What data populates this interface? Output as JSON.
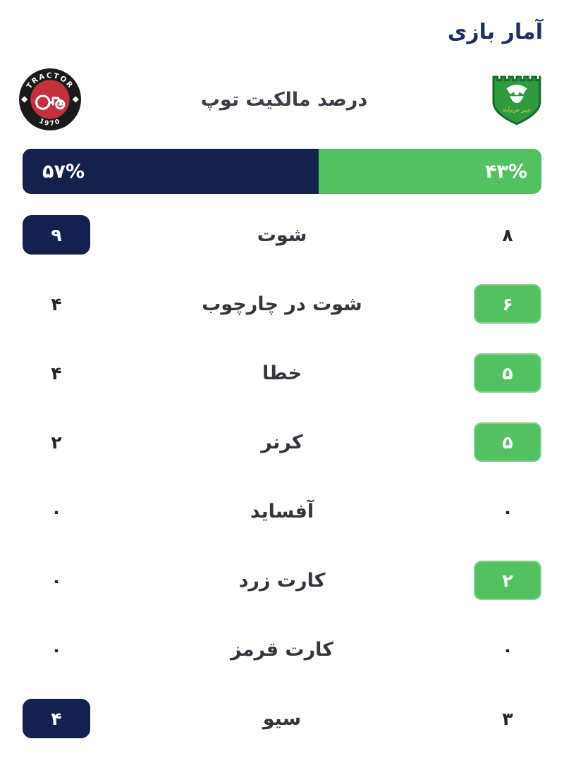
{
  "title": "آمار بازی",
  "header": {
    "possession_label": "درصد مالکیت توپ"
  },
  "teams": {
    "home": {
      "side": "left",
      "logo_icon": "tractor-club-badge",
      "logo_top_text": "TRACTOR",
      "logo_bottom_text": "1970"
    },
    "away": {
      "side": "right",
      "logo_icon": "khaibar-khorramabad-badge",
      "logo_text": "خیبر خرم‌آباد"
    }
  },
  "possession": {
    "home_pct": 57,
    "away_pct": 43,
    "home_display": "۵۷%",
    "away_display": "۴۳%"
  },
  "stats": [
    {
      "label": "شوت",
      "home": "۹",
      "away": "۸",
      "highlight": "home"
    },
    {
      "label": "شوت در چارچوب",
      "home": "۴",
      "away": "۶",
      "highlight": "away"
    },
    {
      "label": "خطا",
      "home": "۴",
      "away": "۵",
      "highlight": "away"
    },
    {
      "label": "کرنر",
      "home": "۲",
      "away": "۵",
      "highlight": "away"
    },
    {
      "label": "آفساید",
      "home": "۰",
      "away": "۰",
      "highlight": "none"
    },
    {
      "label": "کارت زرد",
      "home": "۰",
      "away": "۲",
      "highlight": "away"
    },
    {
      "label": "کارت قرمز",
      "home": "۰",
      "away": "۰",
      "highlight": "none"
    },
    {
      "label": "سیو",
      "home": "۴",
      "away": "۳",
      "highlight": "home"
    }
  ],
  "colors": {
    "navy": "#14204d",
    "green": "#53c162",
    "title_navy": "#1e3160",
    "label_text": "#33373d",
    "value_text": "#22262c",
    "tractor_red": "#c4313a",
    "tractor_ring_black": "#1a1a1a",
    "shield_green": "#2f9a3f",
    "shield_border": "#1a6e2d",
    "shield_text_yellow": "#f2cf4e"
  }
}
